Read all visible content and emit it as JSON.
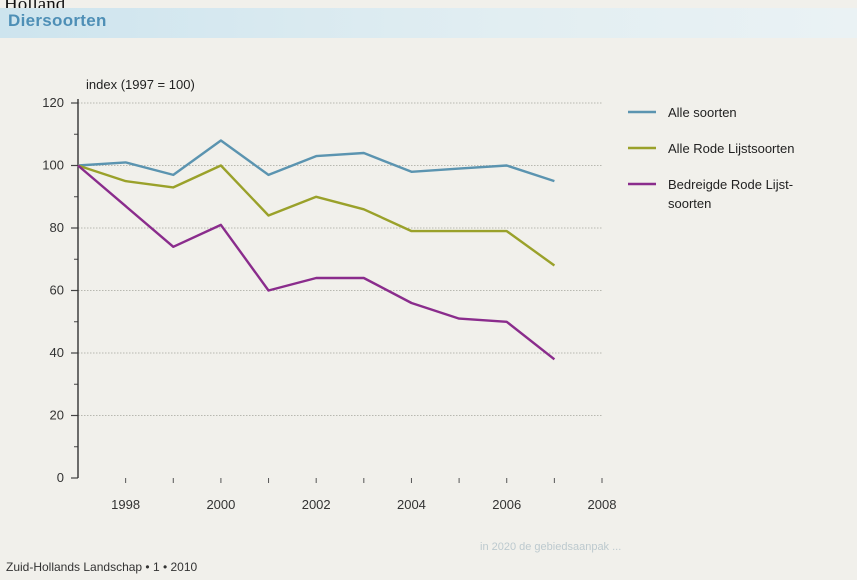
{
  "header": {
    "top_text": "Holland",
    "title": "Diersoorten"
  },
  "footer": {
    "text": "Zuid-Hollands Landschap • 1 • 2010",
    "faint_text": "in 2020 de gebiedsaanpak ..."
  },
  "chart_data": {
    "type": "line",
    "ylabel": "index (1997 = 100)",
    "xlim": [
      1997,
      2008
    ],
    "ylim": [
      0,
      120
    ],
    "xticks": [
      1998,
      2000,
      2002,
      2004,
      2006,
      2008
    ],
    "yticks": [
      0,
      20,
      40,
      60,
      80,
      100,
      120
    ],
    "grid": true,
    "legend_position": "right",
    "x": [
      1997,
      1998,
      1999,
      2000,
      2001,
      2002,
      2003,
      2004,
      2005,
      2006,
      2007
    ],
    "series": [
      {
        "name": "Alle soorten",
        "color": "#5b94b0",
        "values": [
          100,
          101,
          97,
          108,
          97,
          103,
          104,
          98,
          99,
          100,
          95
        ]
      },
      {
        "name": "Alle Rode Lijstsoorten",
        "color": "#9aa12a",
        "values": [
          100,
          95,
          93,
          100,
          84,
          90,
          86,
          79,
          79,
          79,
          68
        ]
      },
      {
        "name": "Bedreigde Rode Lijst-soorten",
        "legend_lines": [
          "Bedreigde Rode Lijst-",
          "soorten"
        ],
        "color": "#8a2c8c",
        "values": [
          100,
          87,
          74,
          81,
          60,
          64,
          64,
          56,
          51,
          50,
          38
        ]
      }
    ]
  }
}
